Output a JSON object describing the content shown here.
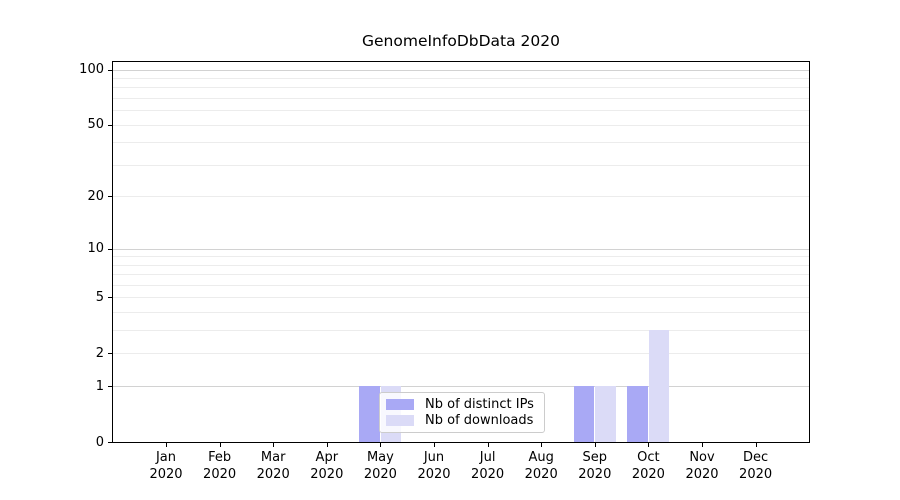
{
  "chart_data": {
    "type": "bar",
    "title": "GenomeInfoDbData 2020",
    "categories": [
      "Jan",
      "Feb",
      "Mar",
      "Apr",
      "May",
      "Jun",
      "Jul",
      "Aug",
      "Sep",
      "Oct",
      "Nov",
      "Dec"
    ],
    "category_sublabel": "2020",
    "series": [
      {
        "name": "Nb of distinct IPs",
        "color": "#a9a9f5",
        "values": [
          0,
          0,
          0,
          0,
          1,
          0,
          0,
          0,
          1,
          1,
          0,
          0
        ]
      },
      {
        "name": "Nb of downloads",
        "color": "#dbdbf7",
        "values": [
          0,
          0,
          0,
          0,
          1,
          0,
          0,
          0,
          1,
          3,
          0,
          0
        ]
      }
    ],
    "yscale": "log1p",
    "yticks": [
      0,
      1,
      2,
      5,
      10,
      20,
      50,
      100
    ],
    "ylim": [
      0,
      110
    ],
    "grid": "horizontal",
    "legend_position": "bottom-center-inside"
  },
  "colors": {
    "grid_major": "#d2d2d2",
    "grid_minor": "#ececec",
    "axis": "#000000"
  }
}
